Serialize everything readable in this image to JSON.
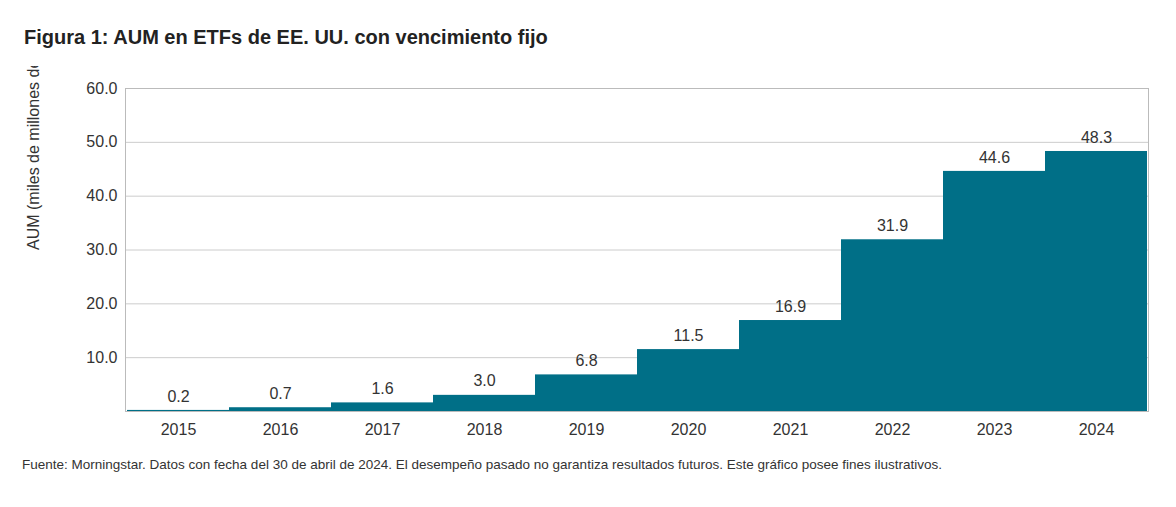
{
  "chart_data": {
    "type": "bar",
    "title": "Figura 1: AUM en ETFs de EE. UU. con vencimiento fijo",
    "y_label": "AUM (miles de millones de dólares)",
    "caption": "Fuente: Morningstar. Datos con fecha del 30 de abril de 2024. El desempeño pasado no garantiza resultados futuros. Este gráfico posee fines ilustrativos.",
    "categories": [
      "2015",
      "2016",
      "2017",
      "2018",
      "2019",
      "2020",
      "2021",
      "2022",
      "2023",
      "2024"
    ],
    "values": [
      0.2,
      0.7,
      1.6,
      3.0,
      6.8,
      11.5,
      16.9,
      31.9,
      44.6,
      48.3
    ],
    "value_labels": [
      "0.2",
      "0.7",
      "1.6",
      "3.0",
      "6.8",
      "11.5",
      "16.9",
      "31.9",
      "44.6",
      "48.3"
    ],
    "data_labels": true,
    "color": "#006f87",
    "ylim": [
      0,
      60
    ],
    "yticks": [
      {
        "value": 10,
        "label": "10.0"
      },
      {
        "value": 20,
        "label": "20.0"
      },
      {
        "value": 30,
        "label": "30.0"
      },
      {
        "value": 40,
        "label": "40.0"
      },
      {
        "value": 50,
        "label": "50.0"
      },
      {
        "value": 60,
        "label": "60.0"
      }
    ],
    "grid": true
  }
}
